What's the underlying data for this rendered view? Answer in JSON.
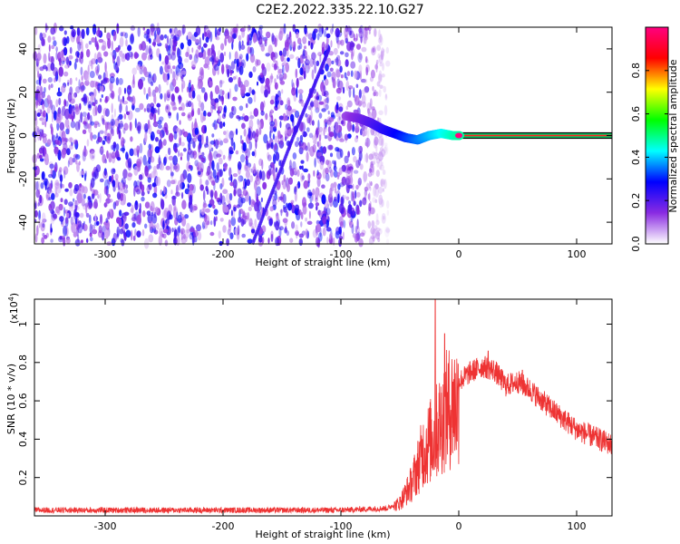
{
  "title": "C2E2.2022.335.22.10.G27",
  "chart_data": [
    {
      "type": "heatmap",
      "name": "spectrogram",
      "xlabel": "Height of straight line (km)",
      "ylabel": "Frequency (Hz)",
      "xlim": [
        -360,
        130
      ],
      "ylim": [
        -50,
        50
      ],
      "xticks": [
        -300,
        -200,
        -100,
        0,
        100
      ],
      "yticks": [
        -40,
        -20,
        0,
        20,
        40
      ],
      "colorbar": {
        "label": "Normalized spectral amplitude",
        "range": [
          0.0,
          1.0
        ],
        "ticks": [
          0.0,
          0.2,
          0.4,
          0.6,
          0.8
        ],
        "colors": [
          "#ffffff",
          "#8a2be2",
          "#0000ff",
          "#00ffff",
          "#00ff00",
          "#ffff00",
          "#ff0000",
          "#ff0080"
        ]
      },
      "noise_region": {
        "x": [
          -360,
          -60
        ],
        "y": [
          -50,
          50
        ],
        "amplitude": 0.15
      },
      "signal_track": [
        {
          "x": -95,
          "y": 9
        },
        {
          "x": -85,
          "y": 8
        },
        {
          "x": -75,
          "y": 6
        },
        {
          "x": -65,
          "y": 3
        },
        {
          "x": -55,
          "y": 1
        },
        {
          "x": -45,
          "y": -1
        },
        {
          "x": -35,
          "y": -2
        },
        {
          "x": -25,
          "y": 0
        },
        {
          "x": -15,
          "y": 1
        },
        {
          "x": -5,
          "y": 0
        },
        {
          "x": 0,
          "y": 0
        },
        {
          "x": 50,
          "y": 0
        },
        {
          "x": 100,
          "y": 0
        },
        {
          "x": 130,
          "y": 0
        }
      ],
      "diagonal_streak": [
        {
          "x": -110,
          "y": 40
        },
        {
          "x": -140,
          "y": 0
        },
        {
          "x": -175,
          "y": -50
        }
      ]
    },
    {
      "type": "line",
      "name": "snr",
      "xlabel": "Height of straight line (km)",
      "ylabel": "SNR (10 * v/v)",
      "scale_label": "(x10",
      "scale_exponent": "4",
      "scale_suffix": ")",
      "xlim": [
        -360,
        130
      ],
      "ylim": [
        0.0,
        1.13
      ],
      "xticks": [
        -300,
        -200,
        -100,
        0,
        100
      ],
      "yticks": [
        0.2,
        0.4,
        0.6,
        0.8,
        1.0
      ],
      "color": "#ee3333",
      "envelope": [
        {
          "x": -360,
          "y": 0.03
        },
        {
          "x": -100,
          "y": 0.03
        },
        {
          "x": -60,
          "y": 0.04
        },
        {
          "x": -50,
          "y": 0.08
        },
        {
          "x": -40,
          "y": 0.2
        },
        {
          "x": -30,
          "y": 0.4
        },
        {
          "x": -20,
          "y": 0.5
        },
        {
          "x": -10,
          "y": 0.65
        },
        {
          "x": 0,
          "y": 0.7
        },
        {
          "x": 10,
          "y": 0.75
        },
        {
          "x": 20,
          "y": 0.78
        },
        {
          "x": 30,
          "y": 0.76
        },
        {
          "x": 40,
          "y": 0.68
        },
        {
          "x": 50,
          "y": 0.7
        },
        {
          "x": 60,
          "y": 0.66
        },
        {
          "x": 80,
          "y": 0.55
        },
        {
          "x": 100,
          "y": 0.45
        },
        {
          "x": 130,
          "y": 0.37
        }
      ],
      "peaks": [
        {
          "x": -20,
          "y": 1.13
        },
        {
          "x": -12,
          "y": 0.95
        },
        {
          "x": 25,
          "y": 0.86
        },
        {
          "x": 54,
          "y": 0.76
        }
      ]
    }
  ]
}
